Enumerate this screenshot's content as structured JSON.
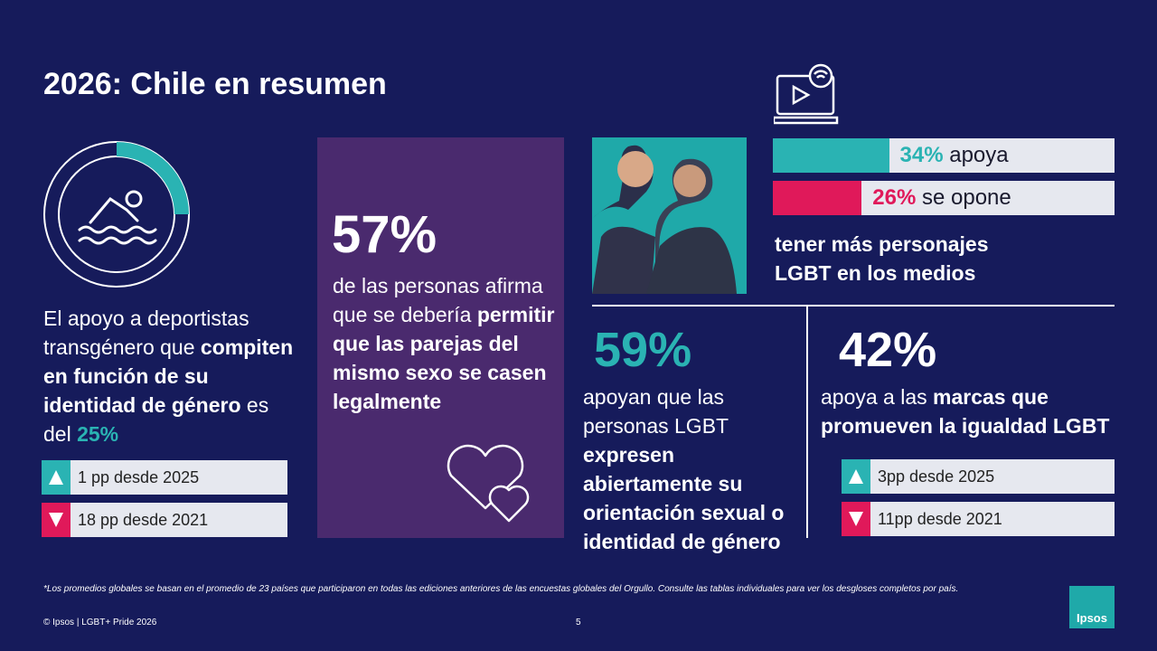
{
  "title": "2026: Chile en resumen",
  "sport": {
    "donut_value": 25,
    "text": [
      "El apoyo a deportistas transgénero que ",
      "compiten en función de su identidad de género",
      " es del ",
      "25%"
    ],
    "changes": [
      "1 pp desde 2025",
      "18 pp desde 2021"
    ]
  },
  "marriage": {
    "figure": "57%",
    "text": [
      "de las personas afirma que se debería ",
      "permitir que las parejas del mismo sexo se casen legalmente"
    ]
  },
  "media": {
    "bars": [
      {
        "label": "34%",
        "value": 34,
        "text": "apoya"
      },
      {
        "label": "26%",
        "value": 26,
        "text": "se opone"
      }
    ],
    "caption": "tener más personajes LGBT en los medios"
  },
  "expression": {
    "figure": "59%",
    "text": [
      "apoyan que las personas LGBT ",
      "expresen abiertamente su orientación sexual o identidad de género"
    ]
  },
  "brands": {
    "figure": "42%",
    "text": [
      "apoya a las ",
      "marcas que promueven la igualdad LGBT"
    ],
    "changes": [
      "3pp desde 2025",
      "11pp desde 2021"
    ]
  },
  "footnote": "*Los promedios globales se basan en el promedio de 23 países que participaron en todas las ediciones anteriores de las encuestas globales del Orgullo. Consulte las tablas individuales para ver los desgloses completos por país.",
  "copyright": "© Ipsos | LGBT+ Pride 2026",
  "page": "5",
  "logo": "Ipsos"
}
